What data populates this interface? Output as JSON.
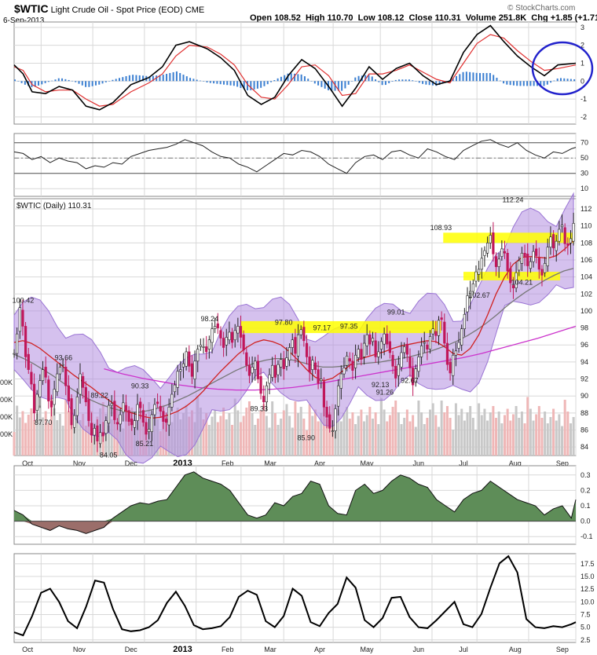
{
  "header": {
    "symbol": "$WTIC",
    "name": "Light Crude Oil - Spot Price (EOD)",
    "exchange": "CME",
    "date": "6-Sep-2013",
    "watermark": "© StockCharts.com",
    "open_label": "Open",
    "open": "108.52",
    "high_label": "High",
    "high": "110.70",
    "low_label": "Low",
    "low": "108.12",
    "close_label": "Close",
    "close": "110.31",
    "volume_label": "Volume",
    "volume": "251.8K",
    "chg_label": "Chg",
    "chg": "+1.85 (+1.71%)",
    "chg_arrow": "▲"
  },
  "colors": {
    "grid": "#d8d8d8",
    "price_bar": "#c0175a",
    "sma20": "#d02020",
    "sma50": "#777777",
    "sma200": "#cc33cc",
    "bollinger": "#b28ee0",
    "highlight": "#ffff00",
    "macd": "#000000",
    "signal": "#e03030",
    "histogram": "#3b7fd1",
    "momentum_up": "#5e8d58",
    "momentum_down": "#9b6e6a",
    "circle": "#2222cc"
  },
  "chart_data": [
    {
      "panel": "macd",
      "type": "line",
      "yaxis_ticks": [
        "3",
        "2",
        "1",
        "0",
        "-1",
        "-2"
      ],
      "ylim": [
        -2.4,
        3.3
      ],
      "series": [],
      "x": [
        0,
        4,
        8,
        14,
        20,
        26,
        32,
        38,
        44,
        52,
        60,
        66,
        72,
        78,
        86,
        92,
        98,
        104,
        110,
        116,
        122,
        128,
        134,
        140,
        146,
        152,
        158,
        164,
        170,
        176,
        182,
        188,
        194,
        200,
        206,
        212,
        218,
        224,
        230,
        236,
        242,
        250
      ],
      "macd": [
        0.9,
        0.4,
        -0.6,
        -0.7,
        -0.3,
        -0.5,
        -1.4,
        -1.6,
        -1.2,
        -0.2,
        0.2,
        0.8,
        2.0,
        2.2,
        1.8,
        1.3,
        0.6,
        -0.8,
        -1.3,
        -0.9,
        0.3,
        1.2,
        0.7,
        -0.3,
        -1.4,
        -0.4,
        0.8,
        0.1,
        0.7,
        1.0,
        0.3,
        -0.2,
        0.0,
        1.6,
        2.6,
        3.1,
        2.2,
        1.4,
        0.8,
        0.3,
        0.9,
        1.0
      ],
      "signal": [
        0.8,
        0.6,
        -0.2,
        -0.6,
        -0.5,
        -0.5,
        -1.0,
        -1.4,
        -1.3,
        -0.6,
        -0.1,
        0.4,
        1.4,
        2.0,
        1.9,
        1.5,
        0.9,
        -0.2,
        -0.9,
        -1.0,
        -0.2,
        0.8,
        0.9,
        0.3,
        -0.8,
        -0.7,
        0.4,
        0.4,
        0.6,
        0.9,
        0.5,
        0.1,
        -0.1,
        1.0,
        2.1,
        2.6,
        2.4,
        1.7,
        1.1,
        0.6,
        0.7,
        0.9
      ]
    },
    {
      "panel": "rsi",
      "type": "line",
      "yaxis_ticks": [
        "70",
        "50",
        "30",
        "10"
      ],
      "ylim": [
        0,
        82
      ],
      "series": [],
      "x": [
        0,
        4,
        8,
        12,
        16,
        20,
        24,
        28,
        32,
        36,
        40,
        44,
        48,
        52,
        56,
        60,
        64,
        68,
        72,
        76,
        80,
        84,
        88,
        92,
        96,
        100,
        104,
        108,
        112,
        116,
        120,
        124,
        128,
        132,
        136,
        140,
        144,
        148,
        152,
        156,
        160,
        164,
        168,
        172,
        176,
        180,
        184,
        188,
        192,
        196,
        200,
        204,
        208,
        212,
        216,
        220,
        224,
        228,
        232,
        236,
        240,
        244,
        248,
        250
      ],
      "values": [
        58,
        56,
        48,
        52,
        44,
        50,
        46,
        44,
        36,
        40,
        38,
        44,
        42,
        52,
        56,
        60,
        62,
        64,
        68,
        74,
        70,
        66,
        58,
        52,
        50,
        42,
        38,
        32,
        40,
        48,
        56,
        54,
        60,
        58,
        52,
        42,
        36,
        30,
        44,
        52,
        54,
        48,
        58,
        60,
        54,
        50,
        62,
        58,
        52,
        48,
        60,
        66,
        72,
        74,
        68,
        64,
        70,
        60,
        54,
        50,
        58,
        56,
        62,
        64
      ]
    },
    {
      "panel": "price",
      "type": "candlestick",
      "title": "$WTIC (Daily) 110.31",
      "yaxis_ticks": [
        "112",
        "110",
        "108",
        "106",
        "104",
        "102",
        "100",
        "98",
        "96",
        "94",
        "92",
        "90",
        "88",
        "86",
        "84"
      ],
      "ylim": [
        83.0,
        113.2
      ],
      "xaxis_ticks": [
        "Oct",
        "Nov",
        "Dec",
        "2013",
        "Feb",
        "Mar",
        "Apr",
        "May",
        "Jun",
        "Jul",
        "Aug",
        "Sep"
      ],
      "close": [
        95.0,
        97.3,
        100.4,
        98.2,
        94.6,
        93.1,
        91.4,
        88.0,
        90.2,
        91.8,
        93.1,
        92.2,
        89.4,
        88.7,
        90.8,
        92.6,
        93.4,
        93.7,
        91.2,
        89.4,
        86.6,
        87.7,
        89.9,
        92.6,
        91.0,
        89.3,
        87.1,
        85.4,
        86.2,
        84.7,
        85.7,
        85.3,
        87.1,
        88.9,
        89.1,
        87.2,
        86.7,
        87.8,
        89.2,
        88.3,
        87.0,
        86.6,
        87.1,
        89.0,
        88.6,
        86.9,
        85.5,
        86.1,
        87.8,
        89.0,
        89.1,
        88.2,
        87.0,
        86.9,
        88.7,
        90.2,
        91.3,
        92.9,
        93.1,
        93.8,
        95.2,
        93.5,
        92.3,
        94.1,
        95.5,
        96.0,
        95.8,
        95.2,
        96.6,
        97.9,
        98.2,
        98.0,
        96.8,
        95.7,
        96.9,
        97.5,
        96.3,
        97.7,
        98.2,
        96.9,
        95.4,
        93.6,
        92.4,
        93.4,
        94.1,
        92.0,
        90.3,
        89.3,
        91.2,
        92.5,
        93.6,
        92.2,
        93.7,
        94.3,
        93.2,
        94.5,
        95.7,
        96.6,
        95.0,
        97.2,
        97.8,
        96.5,
        94.6,
        92.8,
        94.2,
        93.1,
        91.5,
        92.0,
        88.7,
        87.5,
        86.2,
        85.9,
        88.5,
        91.2,
        92.6,
        93.3,
        94.7,
        94.1,
        93.0,
        94.8,
        95.5,
        94.3,
        96.2,
        97.2,
        96.1,
        96.8,
        94.6,
        95.2,
        96.4,
        97.3,
        96.1,
        95.1,
        93.5,
        92.1,
        93.7,
        95.1,
        95.8,
        94.9,
        93.3,
        91.3,
        93.2,
        94.6,
        95.9,
        96.3,
        95.5,
        97.0,
        97.9,
        97.1,
        98.9,
        99.0,
        96.2,
        93.7,
        92.7,
        94.8,
        95.3,
        96.3,
        97.9,
        99.6,
        101.8,
        102.3,
        103.2,
        104.6,
        104.9,
        106.2,
        107.1,
        108.0,
        108.9,
        106.7,
        105.2,
        106.1,
        107.3,
        106.8,
        104.7,
        103.3,
        102.7,
        104.5,
        105.9,
        106.8,
        106.4,
        105.3,
        105.8,
        107.0,
        106.5,
        104.9,
        104.2,
        105.6,
        107.5,
        108.7,
        107.4,
        108.2,
        109.6,
        110.1,
        107.9,
        107.7,
        108.5,
        110.3
      ],
      "open_offsets_note": "",
      "sma20": [
        96.3,
        96.5,
        96.2,
        95.6,
        94.8,
        94.0,
        93.2,
        92.4,
        91.7,
        91.0,
        90.2,
        89.5,
        88.8,
        88.2,
        87.9,
        87.6,
        87.4,
        87.5,
        87.8,
        88.2,
        88.8,
        89.6,
        90.6,
        91.8,
        92.9,
        93.9,
        94.9,
        95.7,
        96.3,
        96.6,
        96.4,
        96.0,
        95.2,
        94.2,
        93.1,
        92.2,
        91.8,
        92.1,
        92.8,
        93.6,
        94.3,
        94.6,
        94.9,
        95.2,
        95.6,
        95.9,
        96.1,
        96.3,
        96.5,
        96.4,
        95.8,
        95.0,
        94.8,
        95.6,
        97.2,
        99.5,
        102.0,
        104.0,
        105.5,
        106.3,
        106.4,
        106.3,
        106.2,
        106.5,
        107.3,
        108.3
      ],
      "sma50": [
        94.9,
        94.4,
        93.8,
        93.1,
        92.4,
        91.6,
        90.8,
        90.1,
        89.5,
        89.0,
        88.6,
        88.3,
        88.1,
        88.1,
        88.3,
        88.6,
        89.0,
        89.5,
        90.0,
        90.6,
        91.2,
        91.8,
        92.4,
        93.0,
        93.5,
        93.9,
        94.2,
        94.4,
        94.4,
        94.2,
        93.9,
        93.6,
        93.4,
        93.4,
        93.5,
        93.7,
        93.8,
        93.9,
        94.0,
        94.2,
        94.4,
        94.6,
        94.9,
        95.2,
        95.6,
        96.0,
        96.5,
        97.1,
        97.8,
        98.6,
        99.5,
        100.5,
        101.4,
        102.2,
        102.9,
        103.6,
        104.2,
        104.7,
        105.0
      ],
      "sma200": [
        93.2,
        92.6,
        92.1,
        91.7,
        91.3,
        91.0,
        90.8,
        90.7,
        90.7,
        90.8,
        91.0,
        91.3,
        91.7,
        92.1,
        92.5,
        92.9,
        93.3,
        93.7,
        94.1,
        94.5,
        95.0,
        95.6,
        96.2,
        96.8,
        97.5,
        98.2
      ],
      "volume": [],
      "annotations": [
        {
          "label": "100.42",
          "value": 100.42
        },
        {
          "label": "93.66",
          "value": 93.66
        },
        {
          "label": "87.70",
          "value": 87.7
        },
        {
          "label": "89.22",
          "value": 89.22
        },
        {
          "label": "84.05",
          "value": 84.05
        },
        {
          "label": "90.33",
          "value": 90.33
        },
        {
          "label": "85.21",
          "value": 85.21
        },
        {
          "label": "98.24",
          "value": 98.24
        },
        {
          "label": "89.33",
          "value": 89.33
        },
        {
          "label": "97.80",
          "value": 97.8
        },
        {
          "label": "85.90",
          "value": 85.9
        },
        {
          "label": "97.17",
          "value": 97.17
        },
        {
          "label": "97.35",
          "value": 97.35
        },
        {
          "label": "92.13",
          "value": 92.13
        },
        {
          "label": "91.26",
          "value": 91.26
        },
        {
          "label": "99.01",
          "value": 99.01
        },
        {
          "label": "92.67",
          "value": 92.67
        },
        {
          "label": "108.93",
          "value": 108.93
        },
        {
          "label": "102.67",
          "value": 102.67
        },
        {
          "label": "112.24",
          "value": 112.24
        },
        {
          "label": "104.21",
          "value": 104.21
        }
      ],
      "volume_axis_labels": [
        "00K",
        "00K",
        "00K",
        "00K"
      ],
      "highlight_bands": [
        {
          "from": 97.4,
          "to": 98.8
        },
        {
          "from": 108.0,
          "to": 109.2
        },
        {
          "from": 103.6,
          "to": 104.6
        }
      ]
    },
    {
      "panel": "momentum",
      "type": "area",
      "yaxis_ticks": [
        "0.3",
        "0.2",
        "0.1",
        "0.0",
        "-0.1"
      ],
      "ylim": [
        -0.15,
        0.36
      ],
      "series": [],
      "x": [
        0,
        4,
        8,
        12,
        16,
        20,
        24,
        28,
        32,
        36,
        40,
        44,
        48,
        52,
        56,
        60,
        64,
        68,
        72,
        76,
        80,
        84,
        88,
        92,
        96,
        100,
        104,
        108,
        112,
        116,
        120,
        124,
        128,
        132,
        136,
        140,
        144,
        148,
        152,
        156,
        160,
        164,
        168,
        172,
        176,
        180,
        184,
        188,
        192,
        196,
        200,
        204,
        208,
        212,
        216,
        220,
        224,
        228,
        232,
        236,
        240,
        244,
        248,
        250
      ],
      "values": [
        0.07,
        0.04,
        -0.02,
        -0.04,
        -0.06,
        -0.03,
        -0.05,
        -0.06,
        -0.08,
        -0.06,
        -0.04,
        0.02,
        0.06,
        0.1,
        0.12,
        0.11,
        0.13,
        0.14,
        0.22,
        0.3,
        0.32,
        0.28,
        0.26,
        0.24,
        0.2,
        0.12,
        0.04,
        0.02,
        0.04,
        0.12,
        0.1,
        0.16,
        0.18,
        0.26,
        0.24,
        0.1,
        0.05,
        0.04,
        0.2,
        0.24,
        0.18,
        0.2,
        0.26,
        0.3,
        0.28,
        0.24,
        0.22,
        0.14,
        0.1,
        0.06,
        0.14,
        0.18,
        0.2,
        0.26,
        0.22,
        0.18,
        0.14,
        0.12,
        0.1,
        0.04,
        0.08,
        0.1,
        0.02,
        0.14
      ]
    },
    {
      "panel": "lower",
      "type": "line",
      "yaxis_ticks": [
        "17.5",
        "15.0",
        "12.5",
        "10.0",
        "7.5",
        "5.0",
        "2.5"
      ],
      "ylim": [
        2.0,
        19.5
      ],
      "series": [],
      "x": [
        0,
        4,
        8,
        12,
        16,
        20,
        24,
        28,
        32,
        36,
        40,
        44,
        48,
        52,
        56,
        60,
        64,
        68,
        72,
        76,
        80,
        84,
        88,
        92,
        96,
        100,
        104,
        108,
        112,
        116,
        120,
        124,
        128,
        132,
        136,
        140,
        144,
        148,
        152,
        156,
        160,
        164,
        168,
        172,
        176,
        180,
        184,
        188,
        192,
        196,
        200,
        204,
        208,
        212,
        216,
        220,
        224,
        228,
        232,
        236,
        240,
        244,
        248,
        250
      ],
      "values": [
        4.0,
        3.4,
        7.2,
        11.8,
        12.6,
        10.0,
        6.2,
        4.8,
        9.0,
        14.2,
        13.8,
        8.6,
        4.6,
        4.2,
        4.4,
        5.0,
        6.4,
        9.8,
        12.0,
        9.2,
        5.4,
        4.6,
        4.8,
        5.2,
        7.0,
        11.0,
        12.2,
        11.4,
        6.2,
        5.0,
        7.2,
        12.6,
        11.2,
        6.0,
        5.2,
        7.8,
        9.6,
        14.8,
        12.8,
        6.4,
        5.0,
        6.8,
        10.8,
        11.0,
        7.0,
        5.0,
        4.8,
        6.4,
        8.2,
        10.0,
        5.6,
        5.0,
        7.6,
        12.8,
        17.6,
        19.0,
        15.8,
        6.6,
        5.0,
        4.8,
        5.2,
        5.0,
        5.6,
        6.0
      ]
    }
  ]
}
